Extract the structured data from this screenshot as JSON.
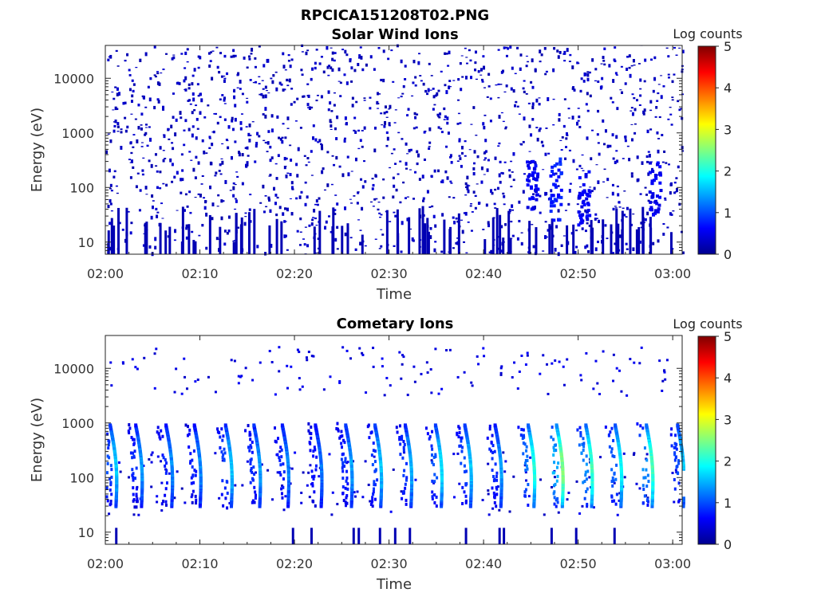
{
  "figure": {
    "title": "RPCICA151208T02.PNG"
  },
  "chart_data": [
    {
      "type": "heatmap",
      "title": "Solar Wind Ions",
      "xlabel": "Time",
      "ylabel": "Energy (eV)",
      "x_ticks": [
        "02:00",
        "02:10",
        "02:20",
        "02:30",
        "02:40",
        "02:50",
        "03:00"
      ],
      "x_range": [
        "02:00",
        "03:01"
      ],
      "y_scale": "log",
      "y_ticks": [
        10,
        100,
        1000,
        10000
      ],
      "y_tick_labels": [
        "10",
        "100",
        "1000",
        "10000"
      ],
      "y_range": [
        6,
        40000
      ],
      "colorbar": {
        "label": "Log counts",
        "range": [
          0,
          5
        ],
        "ticks": [
          "0",
          "1",
          "2",
          "3",
          "4",
          "5"
        ],
        "colormap": "jet"
      },
      "pattern": {
        "description_note": "sparse scattered counts mostly at Log counts ~0-0.5, denser clusters near 02:45-02:58 at 50-500 eV",
        "bursts": [
          {
            "t_min": 45.0,
            "e_min": 40,
            "e_max": 300,
            "level": 0.4
          },
          {
            "t_min": 47.5,
            "e_min": 25,
            "e_max": 400,
            "level": 0.6
          },
          {
            "t_min": 50.5,
            "e_min": 20,
            "e_max": 200,
            "level": 0.4
          },
          {
            "t_min": 58.0,
            "e_min": 30,
            "e_max": 300,
            "level": 0.4
          }
        ]
      }
    },
    {
      "type": "heatmap",
      "title": "Cometary Ions",
      "xlabel": "Time",
      "ylabel": "Energy (eV)",
      "x_ticks": [
        "02:00",
        "02:10",
        "02:20",
        "02:30",
        "02:40",
        "02:50",
        "03:00"
      ],
      "x_range": [
        "02:00",
        "03:01"
      ],
      "y_scale": "log",
      "y_ticks": [
        10,
        100,
        1000,
        10000
      ],
      "y_tick_labels": [
        "10",
        "100",
        "1000",
        "10000"
      ],
      "y_range": [
        6,
        40000
      ],
      "colorbar": {
        "label": "Log counts",
        "range": [
          0,
          5
        ],
        "ticks": [
          "0",
          "1",
          "2",
          "3",
          "4",
          "5"
        ],
        "colormap": "jet"
      },
      "pattern": {
        "description_note": "periodic vertical streaks (energy sweeps) roughly every 3 min from ~30 eV to ~900 eV",
        "streak_times_min": [
          0.3,
          3.0,
          6.2,
          9.2,
          12.5,
          15.5,
          18.5,
          22.0,
          25.2,
          28.3,
          31.5,
          34.7,
          37.8,
          41.0,
          44.5,
          47.5,
          50.6,
          53.7,
          57.0,
          60.3
        ],
        "streak_peak_levels": [
          1.6,
          1.4,
          1.3,
          1.3,
          1.6,
          1.4,
          1.3,
          1.2,
          1.4,
          1.6,
          1.5,
          1.7,
          1.6,
          1.4,
          2.0,
          2.5,
          2.2,
          1.9,
          2.2,
          1.6
        ],
        "streak_e_min": 30,
        "streak_e_max": 900
      }
    }
  ]
}
